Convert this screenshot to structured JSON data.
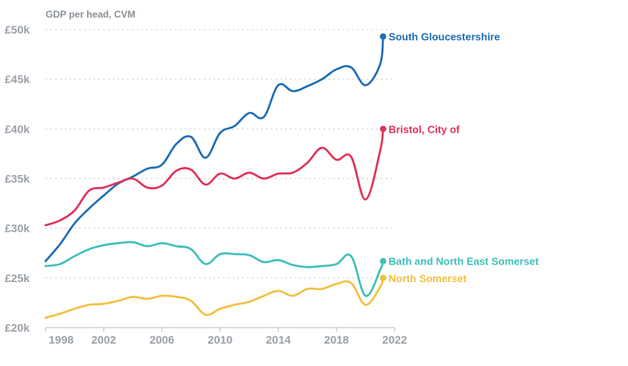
{
  "chart_data": {
    "type": "line",
    "title": "",
    "ylabel": "GDP per head, CVM",
    "xlabel": "",
    "xlim": [
      1998,
      2022
    ],
    "ylim": [
      20000,
      50000
    ],
    "x_ticks": [
      {
        "value": 1998,
        "label": "1998"
      },
      {
        "value": 2002,
        "label": "2002"
      },
      {
        "value": 2006,
        "label": "2006"
      },
      {
        "value": 2010,
        "label": "2010"
      },
      {
        "value": 2014,
        "label": "2014"
      },
      {
        "value": 2018,
        "label": "2018"
      },
      {
        "value": 2022,
        "label": "2022"
      }
    ],
    "y_ticks": [
      {
        "value": 20000,
        "label": "£20k"
      },
      {
        "value": 25000,
        "label": "£25k"
      },
      {
        "value": 30000,
        "label": "£30k"
      },
      {
        "value": 35000,
        "label": "£35k"
      },
      {
        "value": 40000,
        "label": "£40k"
      },
      {
        "value": 45000,
        "label": "£45k"
      },
      {
        "value": 50000,
        "label": "£50k"
      }
    ],
    "grid": "horizontal-dotted",
    "legend": "direct-labels-right",
    "x": [
      1998,
      1999,
      2000,
      2001,
      2002,
      2003,
      2004,
      2005,
      2006,
      2007,
      2008,
      2009,
      2010,
      2011,
      2012,
      2013,
      2014,
      2015,
      2016,
      2017,
      2018,
      2019,
      2020,
      2021
    ],
    "series": [
      {
        "name": "South Gloucestershire",
        "color": "#1f6db5",
        "values": [
          26700,
          28400,
          30500,
          32000,
          33300,
          34500,
          35200,
          36000,
          36400,
          38500,
          39200,
          37100,
          39600,
          40300,
          41600,
          41200,
          44400,
          43800,
          44300,
          45000,
          46000,
          46200,
          44400,
          46500
        ]
      },
      {
        "name": "Bristol, City of",
        "color": "#e0325a",
        "values": [
          30300,
          30800,
          31800,
          33800,
          34100,
          34600,
          35000,
          34100,
          34300,
          35800,
          35900,
          34400,
          35500,
          35000,
          35600,
          35000,
          35500,
          35600,
          36600,
          38100,
          36900,
          37200,
          32900,
          37800
        ]
      },
      {
        "name": "Bath and North East Somerset",
        "color": "#3fbfb9",
        "values": [
          26200,
          26400,
          27200,
          27900,
          28300,
          28500,
          28600,
          28200,
          28500,
          28200,
          27900,
          26400,
          27400,
          27400,
          27300,
          26600,
          26800,
          26300,
          26100,
          26200,
          26400,
          27200,
          23200,
          25800
        ]
      },
      {
        "name": "North Somerset",
        "color": "#f2c041",
        "values": [
          21000,
          21400,
          21900,
          22300,
          22400,
          22700,
          23100,
          22900,
          23200,
          23100,
          22700,
          21300,
          21900,
          22300,
          22600,
          23200,
          23700,
          23200,
          23900,
          23900,
          24400,
          24500,
          22300,
          24100
        ]
      }
    ],
    "end_values": {
      "x": 2021.2,
      "values": [
        49300,
        40000,
        26700,
        25000
      ]
    }
  }
}
